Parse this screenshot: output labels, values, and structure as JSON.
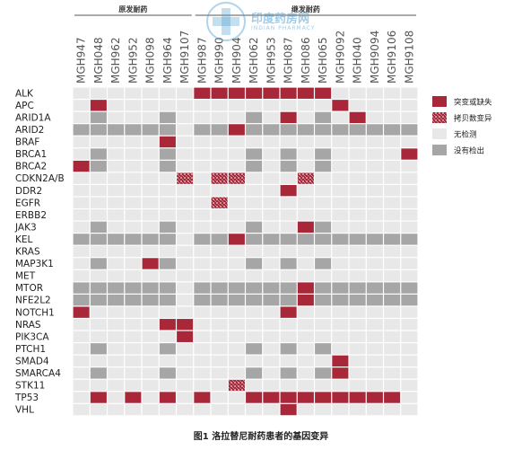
{
  "chart_data": {
    "type": "heatmap",
    "title": "图1 洛拉替尼耐药患者的基因变异",
    "groups": [
      {
        "label": "原发耐药"
      },
      {
        "label": "继发耐药"
      }
    ],
    "samples": [
      "MGH947",
      "MGH048",
      "MGH962",
      "MGH952",
      "MGH098",
      "MGH964",
      "MGH9107",
      "MGH987",
      "MGH990",
      "MGH904",
      "MGH062",
      "MGH953",
      "MGH087",
      "MGH086",
      "MGH065",
      "MGH9092",
      "MGH040",
      "MGH9094",
      "MGH9106",
      "MGH9108"
    ],
    "genes": [
      "ALK",
      "APC",
      "ARID1A",
      "ARID2",
      "BRAF",
      "BRCA1",
      "BRCA2",
      "CDKN2A/B",
      "DDR2",
      "EGFR",
      "ERBB2",
      "JAK3",
      "KEL",
      "KRAS",
      "MAP3K1",
      "MET",
      "MTOR",
      "NFE2L2",
      "NOTCH1",
      "NRAS",
      "PIK3CA",
      "PTCH1",
      "SMAD4",
      "SMARCA4",
      "STK11",
      "TP53",
      "VHL"
    ],
    "legend": [
      {
        "code": "M",
        "label": "突变或缺失",
        "color": "#a8283a"
      },
      {
        "code": "C",
        "label": "拷贝数变异",
        "color": "#a8283a"
      },
      {
        "code": "N",
        "label": "无检测",
        "color": "#e8e8e8"
      },
      {
        "code": "G",
        "label": "没有检出",
        "color": "#a6a6a6"
      }
    ],
    "matrix": [
      "NNNNNNNMMMMMMMMNNNNN",
      "NMNNNNNNNNNNNNNMNNNN",
      "NGNNNGNNNNGNMNGNMNNN",
      "GGGGGGNGGMGGGGGGGGGG",
      "NNNNNMNNNNNNNNNNNNNN",
      "NGNNNGNNNNGNGNGNNNNM",
      "MGNNNGNNNNGNGNGNNNNN",
      "NNNNNNCNCCNNNCNNNNNN",
      "NNNNNNNNNNNNMNNNNNNN",
      "NNNNNNNNCNNNNNNNNNNN",
      "NNNNNNNNNNNNNNNNNNNN",
      "NGNNNGNNNNGNNMGNNNNN",
      "GGGGGGNGGMGGGGGGGGGG",
      "NNNNNNNNNNNNNNNNNNNN",
      "NGNNMGNNNNGNGNGNNNNN",
      "NNNNNNNNNNNNNNNNNNNN",
      "GGGGGGNGGGGGGMGGGGGG",
      "GGGGGGNGGGGGGMGGGGGG",
      "MNNNNNNNNNNNMNNNNNNN",
      "NNNNNMMNNNNNNNNNNNNN",
      "NNNNNNMNNNNNNNNNNNNN",
      "NGNNNGNNNNGNGNGNNNNN",
      "NNNNNNNNNNNNNNNMNNNN",
      "NGNNNGNNNNGNGNGMNNNN",
      "NNNNNNNNNCNNNNNNNNNN",
      "NMNMNMNMNNMMMMMMMMMN",
      "NNNNNNNNNNNNMNNNNNNN"
    ],
    "colors": {
      "mutation": "#a8283a",
      "not_tested": "#e8e8e8",
      "not_detected": "#a6a6a6",
      "grid": "#ffffff"
    }
  },
  "watermark": {
    "title": "印度药房网",
    "subtitle": "INDIAN PHARMACY"
  }
}
